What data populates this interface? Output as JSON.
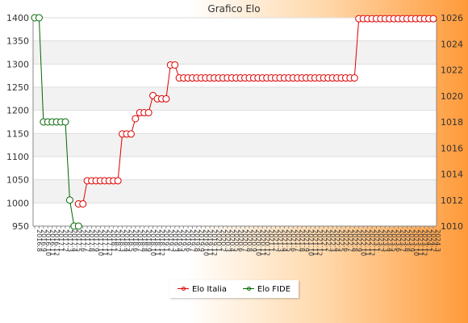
{
  "chart_data": {
    "type": "line",
    "title": "Grafico Elo",
    "legend_position": "bottom-center",
    "grid": true,
    "ylim_left": [
      950,
      1400
    ],
    "yticks_left": [
      950,
      1000,
      1050,
      1100,
      1150,
      1200,
      1250,
      1300,
      1350,
      1400
    ],
    "ylim_right": [
      1010,
      1026
    ],
    "yticks_right": [
      1010,
      1012,
      1014,
      1016,
      1018,
      1020,
      1022,
      1024,
      1026
    ],
    "x_points": 92,
    "x_first_label": "2016.8",
    "x_last_label": "2023.12",
    "series": [
      {
        "name": "Elo Italia",
        "axis": "left",
        "color": "#dd0000",
        "x_start": 10,
        "x_end": 91,
        "segments": [
          {
            "from": 10,
            "to": 11,
            "value": 998
          },
          {
            "from": 12,
            "to": 19,
            "value": 1048
          },
          {
            "from": 20,
            "to": 22,
            "value": 1149
          },
          {
            "from": 23,
            "to": 23,
            "value": 1182
          },
          {
            "from": 24,
            "to": 26,
            "value": 1195
          },
          {
            "from": 27,
            "to": 27,
            "value": 1232
          },
          {
            "from": 28,
            "to": 30,
            "value": 1225
          },
          {
            "from": 31,
            "to": 32,
            "value": 1298
          },
          {
            "from": 33,
            "to": 73,
            "value": 1270
          },
          {
            "from": 74,
            "to": 91,
            "value": 1398
          }
        ]
      },
      {
        "name": "Elo FIDE",
        "axis": "right",
        "color": "#006600",
        "x_start": 0,
        "x_end": 10,
        "points": [
          {
            "x": 0,
            "y": 1026
          },
          {
            "x": 1,
            "y": 1026
          },
          {
            "x": 2,
            "y": 1018
          },
          {
            "x": 3,
            "y": 1018
          },
          {
            "x": 4,
            "y": 1018
          },
          {
            "x": 5,
            "y": 1018
          },
          {
            "x": 6,
            "y": 1018
          },
          {
            "x": 7,
            "y": 1018
          },
          {
            "x": 8,
            "y": 1012
          },
          {
            "x": 9,
            "y": 1010
          },
          {
            "x": 10,
            "y": 1010
          }
        ]
      }
    ]
  }
}
